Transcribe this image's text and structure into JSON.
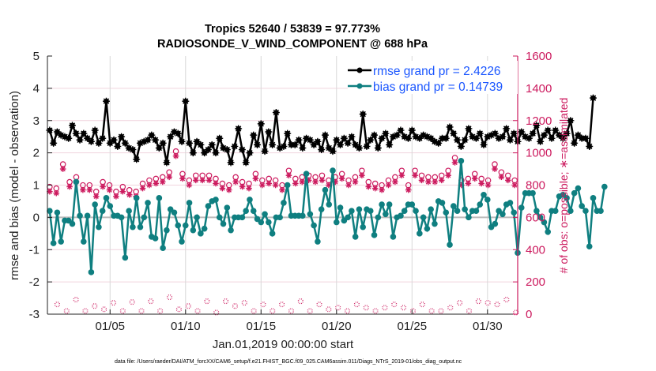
{
  "chart_data": {
    "type": "line",
    "title": [
      "Tropics 52640 / 53839 = 97.773%",
      "RADIOSONDE_V_WIND_COMPONENT @ 688 hPa"
    ],
    "xlabel": "Jan.01,2019 00:00:00 start",
    "ylabel": "rmse and bias (model - observation)",
    "y2label": "# of obs: o=possible; ∗=assimilated",
    "ylim": [
      -3,
      5
    ],
    "y2lim": [
      0,
      1600
    ],
    "xlim_days": [
      0.85,
      32.0
    ],
    "yticks": [
      "-3",
      "-2",
      "-1",
      "0",
      "1",
      "2",
      "3",
      "4",
      "5"
    ],
    "y2ticks": [
      "0",
      "200",
      "400",
      "600",
      "800",
      "1000",
      "1200",
      "1400",
      "1600"
    ],
    "xticks": [
      {
        "day": 5,
        "label": "01/05"
      },
      {
        "day": 10,
        "label": "01/10"
      },
      {
        "day": 15,
        "label": "01/15"
      },
      {
        "day": 20,
        "label": "01/20"
      },
      {
        "day": 25,
        "label": "01/25"
      },
      {
        "day": 30,
        "label": "01/30"
      }
    ],
    "grid": true,
    "legend_position": "top-right",
    "x_start_day": 1.0,
    "x_step_days": 0.25,
    "series": [
      {
        "name": "rmse grand pr = 2.4226",
        "color": "#000000",
        "axis": "left",
        "marker": "*",
        "values": [
          2.7,
          2.3,
          2.65,
          2.55,
          2.5,
          2.45,
          2.85,
          2.6,
          2.4,
          2.6,
          2.45,
          2.35,
          2.7,
          2.3,
          2.45,
          3.6,
          2.3,
          2.4,
          2.2,
          2.5,
          2.3,
          2.15,
          2.1,
          1.8,
          2.3,
          2.35,
          2.4,
          2.55,
          2.4,
          2.15,
          2.3,
          1.7,
          2.5,
          2.65,
          2.6,
          2.35,
          3.6,
          2.3,
          2.0,
          2.35,
          2.25,
          2.0,
          2.1,
          2.25,
          2.0,
          2.45,
          2.15,
          2.1,
          1.7,
          2.2,
          2.75,
          2.1,
          1.7,
          2.0,
          2.55,
          2.25,
          2.9,
          2.05,
          2.65,
          2.25,
          3.25,
          2.15,
          2.2,
          2.6,
          2.25,
          2.25,
          2.4,
          2.15,
          2.45,
          2.4,
          2.25,
          2.35,
          2.1,
          2.55,
          2.15,
          2.05,
          2.4,
          2.25,
          2.45,
          2.3,
          2.5,
          2.25,
          2.15,
          3.2,
          2.2,
          2.4,
          2.55,
          2.15,
          2.45,
          2.6,
          2.25,
          2.5,
          2.55,
          2.7,
          2.5,
          2.45,
          2.7,
          2.5,
          2.45,
          2.55,
          2.5,
          2.45,
          2.35,
          2.3,
          2.45,
          2.45,
          2.8,
          2.6,
          2.4,
          2.2,
          2.4,
          2.75,
          2.5,
          2.45,
          2.6,
          2.25,
          2.5,
          2.55,
          2.6,
          2.45,
          2.5,
          2.75,
          2.4,
          2.6,
          2.35,
          2.65,
          2.5,
          2.45,
          2.6,
          2.85,
          2.35,
          2.55,
          2.7,
          2.45,
          2.7,
          2.55,
          2.45,
          2.6,
          3.0,
          2.3,
          2.55,
          2.45,
          2.45,
          2.2,
          3.7
        ]
      },
      {
        "name": "bias grand pr = 0.14739",
        "color": "#0f7f80",
        "axis": "left",
        "marker": "o",
        "values": [
          0.2,
          -0.8,
          0.15,
          -0.75,
          -0.1,
          -0.1,
          -0.2,
          1.1,
          0.05,
          -0.75,
          0.05,
          -1.7,
          0.4,
          -0.3,
          0.2,
          0.6,
          0.35,
          0.05,
          0.05,
          0.0,
          -1.25,
          0.2,
          -0.3,
          0.6,
          -0.3,
          0.0,
          0.45,
          -0.6,
          -0.65,
          0.6,
          -0.95,
          -0.4,
          0.25,
          0.15,
          -0.25,
          -0.75,
          -0.25,
          0.45,
          -0.4,
          0.0,
          -0.5,
          -0.35,
          0.35,
          0.5,
          0.55,
          0.0,
          -0.2,
          0.3,
          -0.4,
          0.0,
          0.0,
          0.0,
          0.2,
          0.55,
          0.2,
          -0.05,
          -0.15,
          0.1,
          -0.15,
          -0.5,
          0.0,
          0.0,
          0.45,
          1.0,
          0.05,
          0.05,
          0.05,
          0.05,
          1.35,
          0.1,
          -0.25,
          -0.75,
          0.25,
          0.85,
          0.4,
          1.45,
          -0.15,
          0.3,
          -0.1,
          0.0,
          0.2,
          -0.6,
          0.25,
          -0.3,
          0.25,
          0.2,
          -0.55,
          0.0,
          0.4,
          0.1,
          0.4,
          -0.6,
          0.0,
          0.05,
          0.2,
          0.4,
          0.4,
          0.2,
          -0.5,
          0.0,
          -0.35,
          0.25,
          -0.2,
          0.5,
          0.45,
          0.15,
          -0.85,
          0.35,
          0.2,
          1.75,
          0.25,
          0.0,
          0.2,
          0.2,
          0.4,
          0.7,
          0.55,
          -0.3,
          -0.2,
          0.2,
          0.1,
          0.4,
          0.45,
          0.15,
          -1.1,
          0.3,
          0.75,
          0.75,
          0.75,
          0.2,
          0.0,
          -0.15,
          -0.45,
          0.2,
          0.2,
          0.65,
          0.7,
          0.6,
          0.2,
          0.75,
          0.9,
          0.35,
          0.2,
          -0.9,
          0.6,
          0.2,
          0.2,
          0.95
        ]
      },
      {
        "name": "possible obs",
        "color": "#cc1a5e",
        "axis": "right",
        "marker": "o",
        "values_note": "pairs at 00Z (high ~700-900) and 12Z (low ~20-80); plotted every 0.5 day",
        "high_x_start_day": 1.0,
        "high_x_step_days": 1.0,
        "high_values": [
          760,
          750,
          900,
          790,
          820,
          770,
          770,
          730,
          790,
          770,
          730,
          760,
          740,
          730,
          780,
          800,
          810,
          820,
          850,
          980,
          840,
          800,
          830,
          830,
          830,
          810,
          780,
          770,
          820,
          790,
          780,
          840,
          800,
          810,
          800,
          770,
          860,
          810,
          820,
          830,
          820,
          830,
          800,
          820,
          840,
          800,
          820,
          860,
          790,
          780,
          770,
          800,
          820,
          860,
          770,
          860,
          830,
          820,
          820,
          830,
          860,
          940,
          800,
          810,
          840,
          810,
          800,
          900,
          850,
          830,
          800
        ],
        "low_x_start_day": 1.5,
        "low_x_step_days": 1.0,
        "low_values": [
          60,
          20,
          90,
          20,
          50,
          30,
          70,
          20,
          75,
          20,
          80,
          20,
          105,
          30,
          50,
          20,
          80,
          10,
          80,
          50,
          70,
          20,
          60,
          20,
          60,
          20,
          80,
          20,
          60,
          30,
          40,
          20,
          60,
          40,
          20,
          40,
          60,
          40,
          20,
          60,
          20,
          20,
          40,
          70,
          20,
          80,
          70,
          60,
          90,
          10
        ]
      },
      {
        "name": "assimilated obs",
        "color": "#cc1a5e",
        "axis": "right",
        "marker": "*"
      }
    ]
  },
  "footer": "data file: /Users/raeder/DAI/ATM_forcXX/CAM6_setup/f.e21.FHIST_BGC.f09_025.CAM6assim.011/Diags_NTrS_2019-01/obs_diag_output.nc"
}
